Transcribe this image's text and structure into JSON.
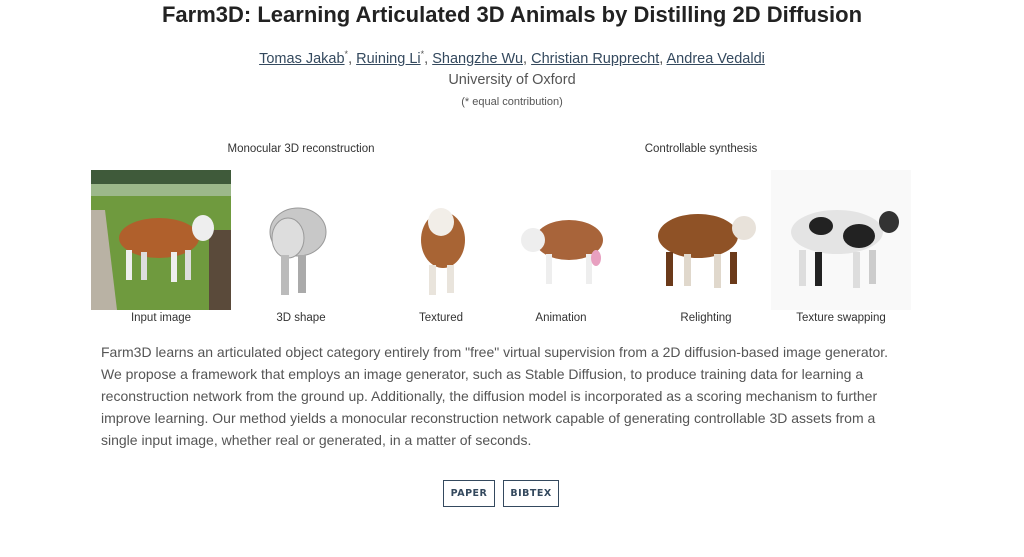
{
  "title": "Farm3D: Learning Articulated 3D Animals by Distilling 2D Diffusion",
  "authors": [
    {
      "name": "Tomas Jakab",
      "mark": "*",
      "sep": ", "
    },
    {
      "name": "Ruining Li",
      "mark": "*",
      "sep": ", "
    },
    {
      "name": "Shangzhe Wu",
      "mark": "",
      "sep": ", "
    },
    {
      "name": "Christian Rupprecht",
      "mark": "",
      "sep": ", "
    },
    {
      "name": "Andrea Vedaldi",
      "mark": "",
      "sep": ""
    }
  ],
  "affiliation": "University of Oxford",
  "note": "(* equal contribution)",
  "figure": {
    "sections": [
      "Monocular 3D reconstruction",
      "Controllable synthesis"
    ],
    "captions": [
      "Input image",
      "3D shape",
      "Textured",
      "Animation",
      "Relighting",
      "Texture swapping"
    ]
  },
  "abstract": "Farm3D learns an articulated object category entirely from \"free\" virtual supervision from a 2D diffusion-based image generator. We propose a framework that employs an image generator, such as Stable Diffusion, to produce training data for learning a reconstruction network from the ground up. Additionally, the diffusion model is incorporated as a scoring mechanism to further improve learning. Our method yields a monocular reconstruction network capable of generating controllable 3D assets from a single input image, whether real or generated, in a matter of seconds.",
  "buttons": {
    "paper": "PAPER",
    "bibtex": "BIBTEX"
  },
  "colors": {
    "link": "#34495e",
    "text": "#555555"
  }
}
